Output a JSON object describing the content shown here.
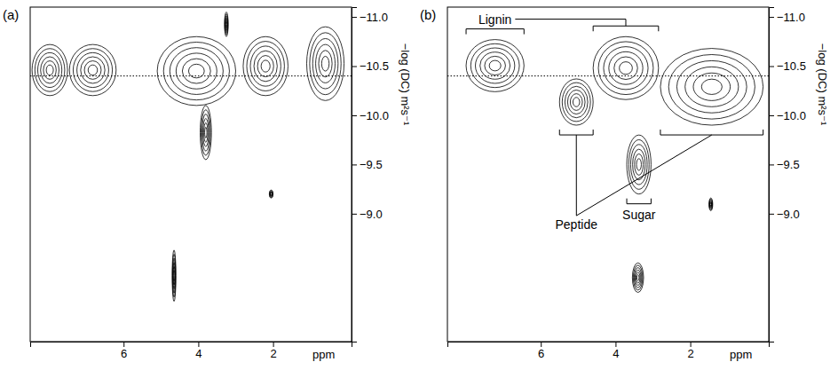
{
  "chart_data": [
    {
      "type": "contour",
      "panel": "(a)",
      "xlabel": "ppm",
      "ylabel": "−log (DC) m²s⁻¹",
      "xlim": [
        8.5,
        -0.1
      ],
      "ylim": [
        -11.1,
        -7.7
      ],
      "xticks": [
        6,
        4,
        2
      ],
      "yticks": [
        {
          "value": -11,
          "label": "−11.0"
        },
        {
          "value": -10.5,
          "label": "−10.5"
        },
        {
          "value": -10,
          "label": "−10.0"
        },
        {
          "value": -9.5,
          "label": "−9.5"
        },
        {
          "value": -9,
          "label": "−9.0"
        }
      ],
      "reference_line": -10.4,
      "peaks": [
        {
          "x": [
            8.45,
            7.5
          ],
          "y": [
            -10.72,
            -10.2
          ]
        },
        {
          "x": [
            7.45,
            6.2
          ],
          "y": [
            -10.72,
            -10.2
          ]
        },
        {
          "x": [
            5.1,
            3.0
          ],
          "y": [
            -10.8,
            -10.1
          ]
        },
        {
          "x": [
            3.95,
            3.65
          ],
          "y": [
            -10.1,
            -9.55
          ]
        },
        {
          "x": [
            3.3,
            3.2
          ],
          "y": [
            -11.05,
            -10.8
          ]
        },
        {
          "x": [
            2.8,
            1.6
          ],
          "y": [
            -10.8,
            -10.2
          ]
        },
        {
          "x": [
            1.1,
            0.1
          ],
          "y": [
            -10.9,
            -10.15
          ]
        },
        {
          "x": [
            2.1,
            2.0
          ],
          "y": [
            -9.24,
            -9.16
          ]
        },
        {
          "x": [
            4.7,
            4.6
          ],
          "y": [
            -8.63,
            -8.11
          ]
        }
      ]
    },
    {
      "type": "contour",
      "panel": "(b)",
      "xlabel": "ppm",
      "ylabel": "−log (DC) m²s⁻¹",
      "xlim": [
        8.5,
        -0.1
      ],
      "ylim": [
        -11.1,
        -7.7
      ],
      "xticks": [
        6,
        4,
        2
      ],
      "yticks": [
        {
          "value": -11,
          "label": "−11.0"
        },
        {
          "value": -10.5,
          "label": "−10.5"
        },
        {
          "value": -10,
          "label": "−10.0"
        },
        {
          "value": -9.5,
          "label": "−9.5"
        },
        {
          "value": -9,
          "label": "−9.0"
        }
      ],
      "reference_line": -10.4,
      "peaks": [
        {
          "x": [
            8.0,
            6.45
          ],
          "y": [
            -10.77,
            -10.24
          ]
        },
        {
          "x": [
            5.5,
            4.6
          ],
          "y": [
            -10.37,
            -9.9
          ]
        },
        {
          "x": [
            4.6,
            2.85
          ],
          "y": [
            -10.8,
            -10.16
          ]
        },
        {
          "x": [
            3.7,
            3.05
          ],
          "y": [
            -9.8,
            -9.2
          ]
        },
        {
          "x": [
            2.8,
            0.05
          ],
          "y": [
            -10.68,
            -9.9
          ]
        },
        {
          "x": [
            1.5,
            1.4
          ],
          "y": [
            -9.16,
            -9.03
          ]
        },
        {
          "x": [
            3.55,
            3.25
          ],
          "y": [
            -8.5,
            -8.2
          ]
        }
      ],
      "annotations": [
        {
          "text": "Lignin"
        },
        {
          "text": "Peptide"
        },
        {
          "text": "Sugar"
        }
      ]
    }
  ]
}
